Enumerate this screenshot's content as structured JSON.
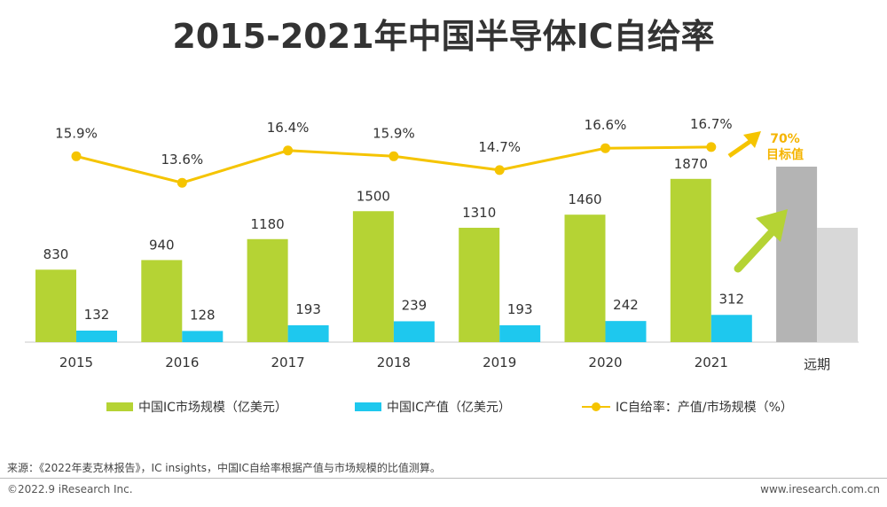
{
  "chart_data": {
    "type": "bar",
    "title": "2015-2021年中国半导体IC自给率",
    "categories": [
      "2015",
      "2016",
      "2017",
      "2018",
      "2019",
      "2020",
      "2021"
    ],
    "series": [
      {
        "name": "中国IC市场规模（亿美元）",
        "type": "bar",
        "color": "#b5d334",
        "values": [
          830,
          940,
          1180,
          1500,
          1310,
          1460,
          1870
        ]
      },
      {
        "name": "中国IC产值（亿美元）",
        "type": "bar",
        "color": "#1ec8ee",
        "values": [
          132,
          128,
          193,
          239,
          193,
          242,
          312
        ]
      },
      {
        "name": "IC自给率：产值/市场规模（%）",
        "type": "line",
        "color": "#f5c400",
        "values": [
          15.9,
          13.6,
          16.4,
          15.9,
          14.7,
          16.6,
          16.7
        ]
      }
    ],
    "rate_labels": [
      "15.9%",
      "13.6%",
      "16.4%",
      "15.9%",
      "14.7%",
      "16.6%",
      "16.7%"
    ],
    "extra_category": "远期",
    "target_value": "70%",
    "target_label": "目标值",
    "legend_position": "bottom",
    "grid": false
  },
  "source": "来源：《2022年麦克林报告》，IC insights，中国IC自给率根据产值与市场规模的比值测算。",
  "copyright": "©2022.9 iResearch Inc.",
  "website": "www.iresearch.com.cn"
}
